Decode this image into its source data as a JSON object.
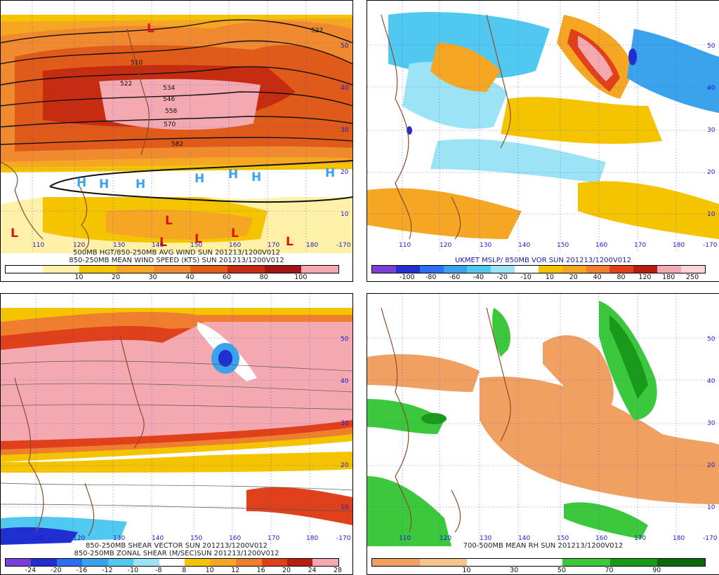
{
  "panels": [
    {
      "id": "p1",
      "caption_lines": [
        "500MB HGT/850-250MB AVG WIND SUN 201213/1200V012",
        "850-250MB MEAN WIND SPEED (KTS) SUN 201213/1200V012"
      ],
      "colorbar": {
        "labels": [
          "10",
          "20",
          "30",
          "40",
          "60",
          "80",
          "100"
        ],
        "colors": [
          "#ffffff",
          "#fff1a8",
          "#f5c400",
          "#f5a623",
          "#ef8a2e",
          "#e05a1a",
          "#c62d10",
          "#a31515",
          "#f4a8b0"
        ]
      },
      "contour_labels": [
        "510",
        "522",
        "534",
        "546",
        "558",
        "570",
        "582",
        "522"
      ],
      "map_labels": {
        "high": "H",
        "low": "L"
      }
    },
    {
      "id": "p2",
      "caption_lines": [
        "UKMET MSLP/ 850MB VOR SUN 201213/1200V012"
      ],
      "colorbar": {
        "labels": [
          "-100",
          "-80",
          "-60",
          "-40",
          "-20",
          "-10",
          "10",
          "20",
          "40",
          "80",
          "120",
          "180",
          "250"
        ],
        "colors": [
          "#7b3fd6",
          "#1f2fd0",
          "#2d6ff0",
          "#3aa3ec",
          "#50c8f0",
          "#9be3f5",
          "#ffffff",
          "#f5c400",
          "#f5a623",
          "#ef7e2e",
          "#e0401a",
          "#b71d10",
          "#f4a8b0",
          "#fcd4dc"
        ]
      }
    },
    {
      "id": "p3",
      "caption_lines": [
        "850-250MB SHEAR VECTOR SUN 201213/1200V012",
        "850-250MB ZONAL SHEAR (M/SEC)SUN 201213/1200V012"
      ],
      "colorbar": {
        "labels": [
          "-24",
          "-20",
          "-16",
          "-12",
          "-10",
          "-8",
          "8",
          "10",
          "12",
          "16",
          "20",
          "24",
          "28"
        ],
        "colors": [
          "#7b3fd6",
          "#1f2fd0",
          "#2d6ff0",
          "#3aa3ec",
          "#50c8f0",
          "#9be3f5",
          "#ffffff",
          "#f5c400",
          "#f5a623",
          "#ef7e2e",
          "#e0401a",
          "#b71d10",
          "#f4a8b0"
        ]
      }
    },
    {
      "id": "p4",
      "caption_lines": [
        "700-500MB MEAN RH SUN 201213/1200V012"
      ],
      "colorbar": {
        "labels": [
          "10",
          "30",
          "50",
          "70",
          "90"
        ],
        "colors": [
          "#f0a060",
          "#f5c48c",
          "#ffffff",
          "#ffffff",
          "#3cc83c",
          "#1a9a1a",
          "#0a6a0a"
        ]
      }
    }
  ],
  "longitudes": [
    "110",
    "120",
    "130",
    "140",
    "150",
    "160",
    "170",
    "180",
    "-170"
  ],
  "latitudes": [
    "10",
    "20",
    "30",
    "40",
    "50"
  ]
}
